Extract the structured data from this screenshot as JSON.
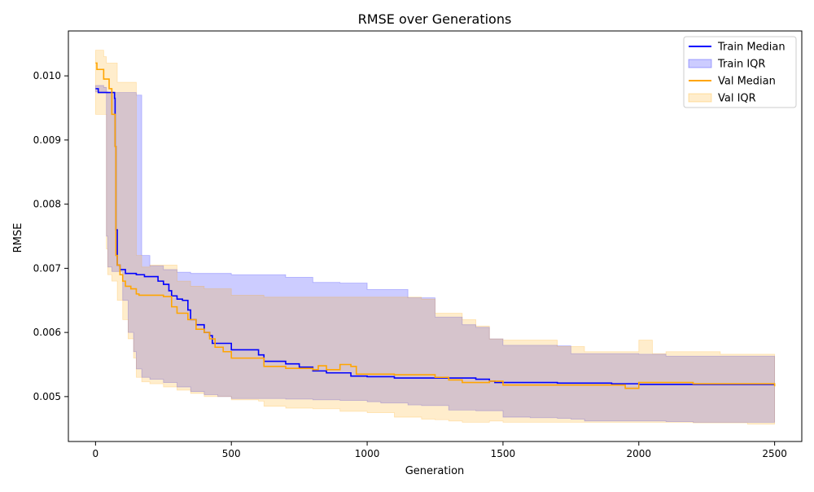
{
  "colors": {
    "train_line": "#0000ff",
    "train_fill": "#0000ff",
    "val_line": "#ffa500",
    "val_fill": "#ffa500"
  },
  "chart_data": {
    "type": "line",
    "title": "RMSE over Generations",
    "xlabel": "Generation",
    "ylabel": "RMSE",
    "xlim": [
      -100,
      2600
    ],
    "ylim": [
      0.0043,
      0.0107
    ],
    "xticks": [
      0,
      500,
      1000,
      1500,
      2000,
      2500
    ],
    "xtick_labels": [
      "0",
      "500",
      "1000",
      "1500",
      "2000",
      "2500"
    ],
    "yticks": [
      0.005,
      0.006,
      0.007,
      0.008,
      0.009,
      0.01
    ],
    "ytick_labels": [
      "0.005",
      "0.006",
      "0.007",
      "0.008",
      "0.009",
      "0.010"
    ],
    "grid": false,
    "legend_position": "top-right",
    "legend": [
      "Train Median",
      "Train IQR",
      "Val Median",
      "Val IQR"
    ],
    "series": [
      {
        "name": "Train Median",
        "kind": "line",
        "color": "#0000ff",
        "x": [
          0,
          10,
          60,
          70,
          72,
          75,
          80,
          90,
          110,
          150,
          180,
          230,
          250,
          270,
          280,
          300,
          320,
          340,
          350,
          370,
          400,
          420,
          430,
          450,
          500,
          600,
          620,
          700,
          750,
          800,
          850,
          900,
          940,
          1000,
          1100,
          1400,
          1450,
          1470,
          1700,
          1900,
          2000,
          2500
        ],
        "y": [
          0.0098,
          0.00974,
          0.00974,
          0.00965,
          0.0089,
          0.0076,
          0.00705,
          0.00698,
          0.00692,
          0.0069,
          0.00687,
          0.0068,
          0.00675,
          0.00665,
          0.00657,
          0.00652,
          0.0065,
          0.00635,
          0.0062,
          0.00612,
          0.006,
          0.00595,
          0.00583,
          0.00583,
          0.00573,
          0.00565,
          0.00555,
          0.00551,
          0.00546,
          0.0054,
          0.00537,
          0.00537,
          0.00532,
          0.00531,
          0.00529,
          0.00527,
          0.00524,
          0.00522,
          0.00521,
          0.0052,
          0.00519,
          0.00519
        ]
      },
      {
        "name": "Train IQR",
        "kind": "band",
        "color": "#0000ff",
        "x": [
          0,
          30,
          40,
          45,
          60,
          100,
          120,
          140,
          150,
          170,
          200,
          250,
          300,
          350,
          400,
          450,
          500,
          550,
          600,
          700,
          800,
          900,
          1000,
          1050,
          1100,
          1150,
          1200,
          1250,
          1300,
          1350,
          1400,
          1450,
          1500,
          1600,
          1700,
          1750,
          1800,
          2000,
          2100,
          2200,
          2500
        ],
        "lower": [
          0.00975,
          0.00975,
          0.0075,
          0.00702,
          0.00695,
          0.0065,
          0.006,
          0.0057,
          0.00543,
          0.0053,
          0.00527,
          0.00522,
          0.00515,
          0.00508,
          0.00503,
          0.005,
          0.00497,
          0.00497,
          0.00497,
          0.00496,
          0.00495,
          0.00494,
          0.00492,
          0.0049,
          0.0049,
          0.00487,
          0.00486,
          0.00486,
          0.00479,
          0.00479,
          0.00478,
          0.00478,
          0.00468,
          0.00467,
          0.00466,
          0.00465,
          0.00462,
          0.00462,
          0.00461,
          0.0046,
          0.0046
        ],
        "upper": [
          0.00985,
          0.00982,
          0.00975,
          0.00974,
          0.00974,
          0.00974,
          0.00974,
          0.00974,
          0.0097,
          0.0072,
          0.00704,
          0.00698,
          0.00694,
          0.00692,
          0.00692,
          0.00692,
          0.0069,
          0.0069,
          0.0069,
          0.00686,
          0.00678,
          0.00677,
          0.00667,
          0.00667,
          0.00667,
          0.00654,
          0.00654,
          0.00624,
          0.00624,
          0.00612,
          0.00608,
          0.0059,
          0.0058,
          0.0058,
          0.00579,
          0.00567,
          0.00567,
          0.00566,
          0.00563,
          0.00563,
          0.00563
        ]
      },
      {
        "name": "Val Median",
        "kind": "line",
        "color": "#ffa500",
        "x": [
          0,
          5,
          10,
          30,
          50,
          60,
          72,
          75,
          80,
          90,
          100,
          110,
          130,
          150,
          160,
          250,
          280,
          300,
          340,
          370,
          400,
          420,
          440,
          470,
          500,
          600,
          620,
          700,
          800,
          820,
          850,
          900,
          940,
          960,
          1000,
          1100,
          1250,
          1300,
          1350,
          1450,
          1500,
          1900,
          1950,
          2000,
          2200,
          2500
        ],
        "y": [
          0.0102,
          0.0101,
          0.0101,
          0.00995,
          0.0098,
          0.0094,
          0.0089,
          0.0072,
          0.00705,
          0.0069,
          0.0068,
          0.00672,
          0.00668,
          0.0066,
          0.00658,
          0.00656,
          0.0064,
          0.0063,
          0.0062,
          0.00605,
          0.006,
          0.0059,
          0.00577,
          0.0057,
          0.0056,
          0.0056,
          0.00547,
          0.00544,
          0.00542,
          0.00548,
          0.00542,
          0.0055,
          0.00547,
          0.00535,
          0.00535,
          0.00534,
          0.0053,
          0.00526,
          0.00522,
          0.00524,
          0.00518,
          0.00518,
          0.00513,
          0.00522,
          0.0052,
          0.00516
        ]
      },
      {
        "name": "Val IQR",
        "kind": "band",
        "color": "#ffa500",
        "x": [
          0,
          30,
          40,
          45,
          60,
          80,
          100,
          120,
          140,
          150,
          170,
          200,
          250,
          300,
          350,
          400,
          500,
          600,
          620,
          700,
          800,
          900,
          1000,
          1100,
          1200,
          1250,
          1300,
          1350,
          1400,
          1450,
          1500,
          1600,
          1700,
          1800,
          1950,
          2000,
          2050,
          2100,
          2200,
          2300,
          2400,
          2500
        ],
        "lower": [
          0.0094,
          0.0094,
          0.0073,
          0.0069,
          0.0068,
          0.0065,
          0.0062,
          0.0059,
          0.0056,
          0.0053,
          0.00523,
          0.0052,
          0.00515,
          0.0051,
          0.00505,
          0.005,
          0.00495,
          0.00493,
          0.00485,
          0.00482,
          0.00481,
          0.00477,
          0.00475,
          0.00468,
          0.00465,
          0.00464,
          0.00462,
          0.0046,
          0.0046,
          0.00462,
          0.0046,
          0.0046,
          0.0046,
          0.0046,
          0.0046,
          0.0046,
          0.0046,
          0.0046,
          0.00459,
          0.00459,
          0.00457,
          0.00457
        ],
        "upper": [
          0.0104,
          0.0103,
          0.0102,
          0.0102,
          0.0102,
          0.0099,
          0.0099,
          0.0099,
          0.0099,
          0.0072,
          0.00702,
          0.00705,
          0.00705,
          0.0068,
          0.00672,
          0.00668,
          0.00658,
          0.00658,
          0.00655,
          0.00655,
          0.00655,
          0.00655,
          0.00655,
          0.00655,
          0.00652,
          0.0063,
          0.0063,
          0.0062,
          0.0061,
          0.0059,
          0.00588,
          0.00588,
          0.00578,
          0.0057,
          0.0057,
          0.00588,
          0.00567,
          0.0057,
          0.0057,
          0.00566,
          0.00566,
          0.00566
        ]
      }
    ]
  }
}
